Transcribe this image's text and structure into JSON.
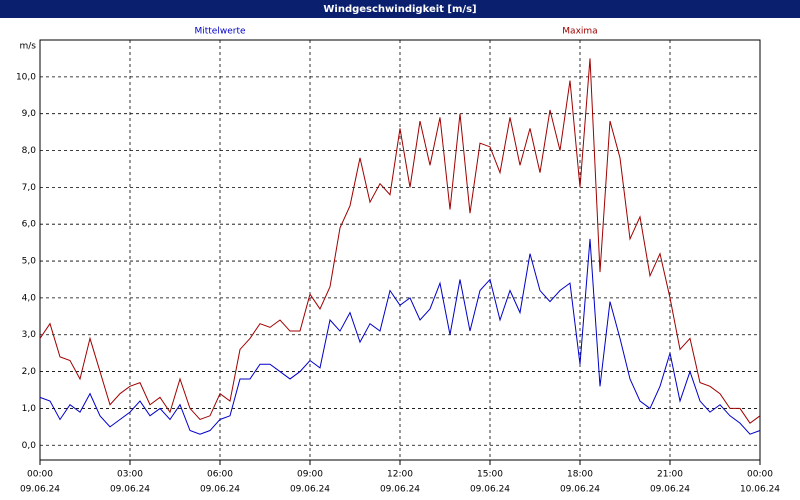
{
  "chart_data": {
    "type": "line",
    "title": "Windgeschwindigkeit [m/s]",
    "y_label": "m/s",
    "x": [
      0,
      20,
      40,
      60,
      80,
      100,
      120,
      140,
      160,
      180,
      200,
      220,
      240,
      260,
      280,
      300,
      320,
      340,
      360,
      380,
      400,
      420,
      440,
      460,
      480,
      500,
      520,
      540,
      560,
      580,
      600,
      620,
      640,
      660,
      680,
      700,
      720,
      740,
      760,
      780,
      800,
      820,
      840,
      860,
      880,
      900,
      920,
      940,
      960,
      980,
      1000,
      1020,
      1040,
      1060,
      1080,
      1100,
      1120,
      1140,
      1160,
      1180,
      1200,
      1220,
      1240,
      1260,
      1280,
      1300,
      1320,
      1340,
      1360,
      1380,
      1400,
      1420,
      1440
    ],
    "series": [
      {
        "name": "Mittelwerte",
        "color": "#0000c8",
        "values": [
          1.3,
          1.2,
          0.7,
          1.1,
          0.9,
          1.4,
          0.8,
          0.5,
          0.7,
          0.9,
          1.2,
          0.8,
          1.0,
          0.7,
          1.1,
          0.4,
          0.3,
          0.4,
          0.7,
          0.8,
          1.8,
          1.8,
          2.2,
          2.2,
          2.0,
          1.8,
          2.0,
          2.3,
          2.1,
          3.4,
          3.1,
          3.6,
          2.8,
          3.3,
          3.1,
          4.2,
          3.8,
          4.0,
          3.4,
          3.7,
          4.4,
          3.0,
          4.5,
          3.1,
          4.2,
          4.5,
          3.4,
          4.2,
          3.6,
          5.2,
          4.2,
          3.9,
          4.2,
          4.4,
          2.2,
          5.6,
          1.6,
          3.9,
          2.9,
          1.8,
          1.2,
          1.0,
          1.6,
          2.5,
          1.2,
          2.0,
          1.2,
          0.9,
          1.1,
          0.8,
          0.6,
          0.3,
          0.4
        ]
      },
      {
        "name": "Maxima",
        "color": "#a00000",
        "values": [
          2.9,
          3.3,
          2.4,
          2.3,
          1.8,
          2.9,
          2.0,
          1.1,
          1.4,
          1.6,
          1.7,
          1.1,
          1.3,
          0.9,
          1.8,
          1.0,
          0.7,
          0.8,
          1.4,
          1.2,
          2.6,
          2.9,
          3.3,
          3.2,
          3.4,
          3.1,
          3.1,
          4.1,
          3.7,
          4.3,
          5.9,
          6.5,
          7.8,
          6.6,
          7.1,
          6.8,
          8.6,
          7.0,
          8.8,
          7.6,
          8.9,
          6.4,
          9.0,
          6.3,
          8.2,
          8.1,
          7.4,
          8.9,
          7.6,
          8.6,
          7.4,
          9.1,
          8.0,
          9.9,
          7.0,
          10.5,
          4.7,
          8.8,
          7.8,
          5.6,
          6.2,
          4.6,
          5.2,
          4.0,
          2.6,
          2.9,
          1.7,
          1.6,
          1.4,
          1.0,
          1.0,
          0.6,
          0.8
        ]
      }
    ],
    "xlim": [
      0,
      1440
    ],
    "xticks": [
      {
        "value": 0,
        "label": "00:00",
        "date": "09.06.24"
      },
      {
        "value": 180,
        "label": "03:00",
        "date": "09.06.24"
      },
      {
        "value": 360,
        "label": "06:00",
        "date": "09.06.24"
      },
      {
        "value": 540,
        "label": "09:00",
        "date": "09.06.24"
      },
      {
        "value": 720,
        "label": "12:00",
        "date": "09.06.24"
      },
      {
        "value": 900,
        "label": "15:00",
        "date": "09.06.24"
      },
      {
        "value": 1080,
        "label": "18:00",
        "date": "09.06.24"
      },
      {
        "value": 1260,
        "label": "21:00",
        "date": "09.06.24"
      },
      {
        "value": 1440,
        "label": "00:00",
        "date": "10.06.24"
      }
    ],
    "ylim": [
      -0.4,
      11.0
    ],
    "yticks": [
      {
        "value": 0,
        "label": "0,0"
      },
      {
        "value": 1,
        "label": "1,0"
      },
      {
        "value": 2,
        "label": "2,0"
      },
      {
        "value": 3,
        "label": "3,0"
      },
      {
        "value": 4,
        "label": "4,0"
      },
      {
        "value": 5,
        "label": "5,0"
      },
      {
        "value": 6,
        "label": "6,0"
      },
      {
        "value": 7,
        "label": "7,0"
      },
      {
        "value": 8,
        "label": "8,0"
      },
      {
        "value": 9,
        "label": "9,0"
      },
      {
        "value": 10,
        "label": "10,0"
      }
    ],
    "grid": true
  }
}
